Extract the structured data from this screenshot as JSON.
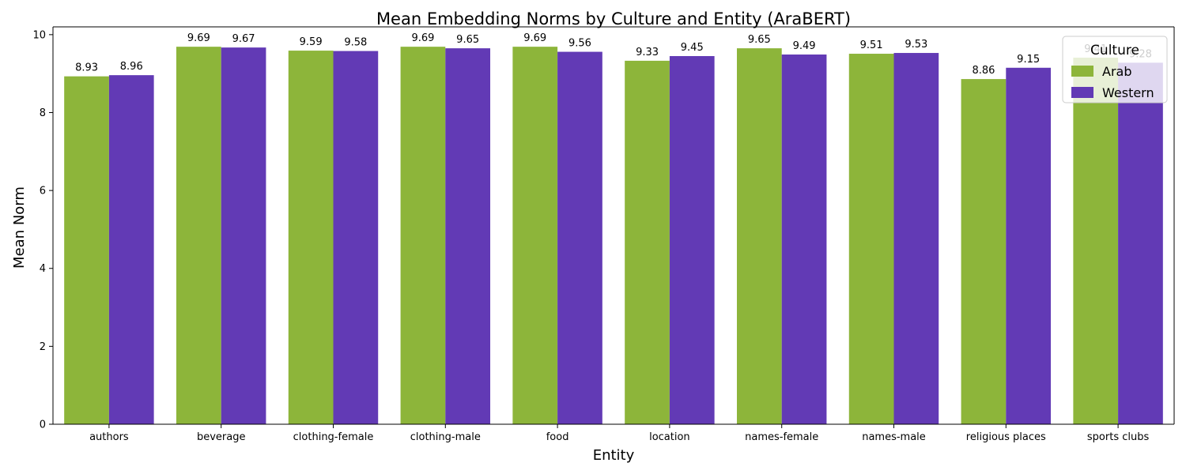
{
  "chart_data": {
    "type": "bar",
    "title": "Mean Embedding Norms by Culture and Entity (AraBERT)",
    "xlabel": "Entity",
    "ylabel": "Mean Norm",
    "categories": [
      "authors",
      "beverage",
      "clothing-female",
      "clothing-male",
      "food",
      "location",
      "names-female",
      "names-male",
      "religious places",
      "sports clubs"
    ],
    "series": [
      {
        "name": "Arab",
        "color": "#8db53a",
        "values": [
          8.93,
          9.69,
          9.59,
          9.69,
          9.69,
          9.33,
          9.65,
          9.51,
          8.86,
          9.41
        ]
      },
      {
        "name": "Western",
        "color": "#623ab5",
        "values": [
          8.96,
          9.67,
          9.58,
          9.65,
          9.56,
          9.45,
          9.49,
          9.53,
          9.15,
          9.28
        ]
      }
    ],
    "ylim": [
      0,
      10.2
    ],
    "yticks": [
      0,
      2,
      4,
      6,
      8,
      10
    ],
    "grid": false,
    "legend": {
      "title": "Culture",
      "placement": "top-right"
    }
  }
}
